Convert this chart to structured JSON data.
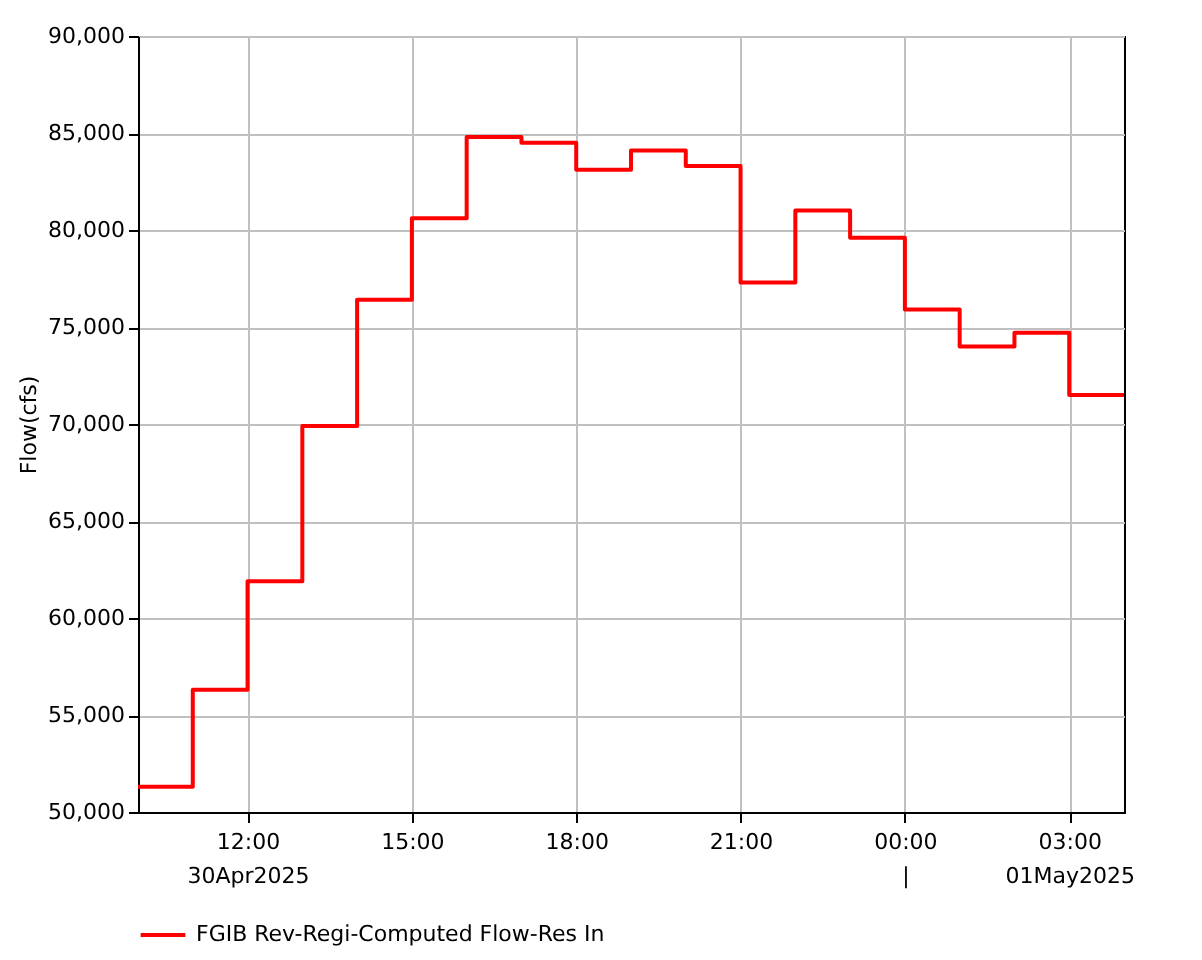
{
  "chart_data": {
    "type": "step",
    "ylabel": "Flow(cfs)",
    "x": [
      "2025-04-30T10:00",
      "2025-04-30T11:00",
      "2025-04-30T12:00",
      "2025-04-30T13:00",
      "2025-04-30T14:00",
      "2025-04-30T15:00",
      "2025-04-30T16:00",
      "2025-04-30T17:00",
      "2025-04-30T18:00",
      "2025-04-30T19:00",
      "2025-04-30T20:00",
      "2025-04-30T21:00",
      "2025-04-30T22:00",
      "2025-04-30T23:00",
      "2025-05-01T00:00",
      "2025-05-01T01:00",
      "2025-05-01T02:00",
      "2025-05-01T03:00",
      "2025-05-01T04:00"
    ],
    "series": [
      {
        "name": "FGIB Rev-Regi-Computed Flow-Res In",
        "color": "#ff0000",
        "values": [
          51300,
          56300,
          61900,
          69900,
          76400,
          80600,
          84800,
          84500,
          83100,
          84100,
          83300,
          77300,
          81000,
          79600,
          75900,
          74000,
          74700,
          71500,
          71500
        ]
      }
    ],
    "xlim": [
      "2025-04-30T10:00",
      "2025-05-01T04:00"
    ],
    "xticks": [
      {
        "value": "2025-04-30T12:00",
        "label": "12:00\n30Apr2025"
      },
      {
        "value": "2025-04-30T15:00",
        "label": "15:00"
      },
      {
        "value": "2025-04-30T18:00",
        "label": "18:00"
      },
      {
        "value": "2025-04-30T21:00",
        "label": "21:00"
      },
      {
        "value": "2025-05-01T00:00",
        "label": "00:00\n|"
      },
      {
        "value": "2025-05-01T03:00",
        "label": "03:00\n01May2025"
      }
    ],
    "ylim": [
      50000,
      90000
    ],
    "yticks": [
      {
        "value": 50000,
        "label": "50,000"
      },
      {
        "value": 55000,
        "label": "55,000"
      },
      {
        "value": 60000,
        "label": "60,000"
      },
      {
        "value": 65000,
        "label": "65,000"
      },
      {
        "value": 70000,
        "label": "70,000"
      },
      {
        "value": 75000,
        "label": "75,000"
      },
      {
        "value": 80000,
        "label": "80,000"
      },
      {
        "value": 85000,
        "label": "85,000"
      },
      {
        "value": 90000,
        "label": "90,000"
      }
    ],
    "grid": true,
    "legend": "bottom",
    "line_style": "solid",
    "marker": "none"
  }
}
